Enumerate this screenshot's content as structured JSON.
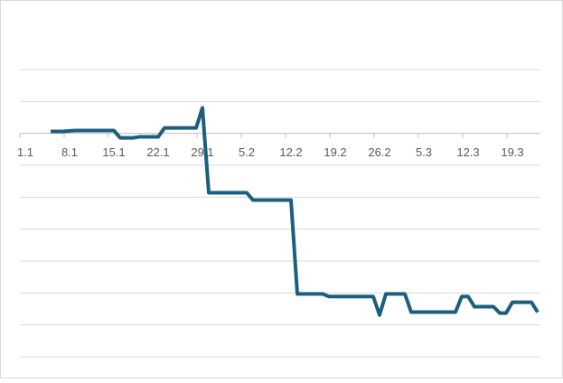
{
  "chart_data": {
    "type": "line",
    "categories": [
      "1.1",
      null,
      null,
      null,
      null,
      null,
      null,
      "8.1",
      null,
      null,
      null,
      null,
      null,
      null,
      "15.1",
      null,
      null,
      null,
      null,
      null,
      null,
      "22.1",
      null,
      null,
      null,
      null,
      null,
      null,
      "29.1",
      null,
      null,
      null,
      null,
      null,
      null,
      "5.2",
      null,
      null,
      null,
      null,
      null,
      null,
      "12.2",
      null,
      null,
      null,
      null,
      null,
      null,
      "19.2",
      null,
      null,
      null,
      null,
      null,
      null,
      "26.2",
      null,
      null,
      null,
      null,
      null,
      null,
      "5.3",
      null,
      null,
      null,
      null,
      null,
      null,
      "12.3",
      null,
      null,
      null,
      null,
      null,
      null,
      "19.3",
      null,
      null,
      null,
      null
    ],
    "values": [
      null,
      null,
      null,
      null,
      0.06,
      0.06,
      0.06,
      0.08,
      0.09,
      0.09,
      0.09,
      0.09,
      0.09,
      0.09,
      0.09,
      -0.14,
      -0.14,
      -0.14,
      -0.11,
      -0.11,
      -0.11,
      -0.11,
      0.17,
      0.17,
      0.17,
      0.17,
      0.17,
      0.17,
      0.8,
      -1.86,
      -1.86,
      -1.86,
      -1.86,
      -1.86,
      -1.86,
      -1.86,
      -2.09,
      -2.09,
      -2.09,
      -2.09,
      -2.09,
      -2.09,
      -2.09,
      -5.03,
      -5.03,
      -5.03,
      -5.03,
      -5.03,
      -5.11,
      -5.11,
      -5.11,
      -5.11,
      -5.11,
      -5.11,
      -5.11,
      -5.11,
      -5.69,
      -5.03,
      -5.03,
      -5.03,
      -5.03,
      -5.6,
      -5.6,
      -5.6,
      -5.6,
      -5.6,
      -5.6,
      -5.6,
      -5.6,
      -5.11,
      -5.11,
      -5.43,
      -5.43,
      -5.43,
      -5.43,
      -5.63,
      -5.63,
      -5.29,
      -5.29,
      -5.29,
      -5.29,
      -5.6
    ],
    "color": "#1b5f7f",
    "ylim": [
      -7,
      2
    ],
    "yticks": [
      -7,
      -6,
      -5,
      -4,
      -3,
      -2,
      -1,
      0,
      1,
      2
    ],
    "show_ytick_labels": false,
    "grid": true
  }
}
